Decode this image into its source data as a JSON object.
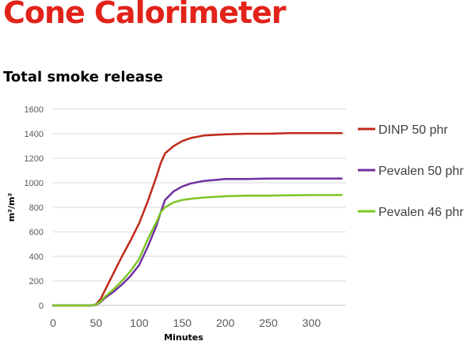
{
  "page": {
    "title": "Cone Calorimeter",
    "subtitle": "Total smoke release"
  },
  "colors": {
    "title": "#e2231a",
    "gridline": "#d9d9d9",
    "axis": "#bfbfbf"
  },
  "chart_data": {
    "type": "line",
    "title": "Total smoke release",
    "xlabel": "Minutes",
    "ylabel": "m²/m²",
    "xlim": [
      0,
      340
    ],
    "ylim": [
      0,
      1600
    ],
    "xticks": [
      0,
      50,
      100,
      150,
      200,
      250,
      300
    ],
    "yticks": [
      0,
      200,
      400,
      600,
      800,
      1000,
      1200,
      1400,
      1600
    ],
    "grid": "horizontal",
    "legend_position": "right",
    "series": [
      {
        "name": "DINP 50 phr",
        "color": "#c0291b",
        "x": [
          0,
          45,
          50,
          55,
          60,
          70,
          80,
          90,
          100,
          110,
          120,
          125,
          130,
          140,
          150,
          160,
          175,
          200,
          225,
          250,
          275,
          300,
          335
        ],
        "y": [
          0,
          0,
          10,
          50,
          120,
          260,
          400,
          530,
          670,
          850,
          1050,
          1160,
          1240,
          1300,
          1340,
          1365,
          1385,
          1395,
          1400,
          1400,
          1405,
          1405,
          1405
        ]
      },
      {
        "name": "Pevalen 50 phr",
        "color": "#7030a0",
        "x": [
          0,
          45,
          50,
          55,
          60,
          70,
          80,
          90,
          100,
          110,
          120,
          125,
          130,
          140,
          150,
          160,
          175,
          200,
          225,
          250,
          275,
          300,
          335
        ],
        "y": [
          0,
          0,
          5,
          25,
          60,
          110,
          170,
          240,
          330,
          480,
          650,
          760,
          860,
          930,
          970,
          995,
          1015,
          1030,
          1030,
          1035,
          1035,
          1035,
          1035
        ]
      },
      {
        "name": "Pevalen 46 phr",
        "color": "#7cc623",
        "x": [
          0,
          45,
          50,
          55,
          60,
          70,
          80,
          90,
          100,
          110,
          120,
          125,
          130,
          140,
          150,
          160,
          175,
          200,
          225,
          250,
          275,
          300,
          335
        ],
        "y": [
          0,
          0,
          8,
          30,
          70,
          130,
          200,
          280,
          380,
          540,
          680,
          760,
          800,
          840,
          860,
          870,
          880,
          890,
          895,
          895,
          898,
          900,
          900
        ]
      }
    ]
  }
}
